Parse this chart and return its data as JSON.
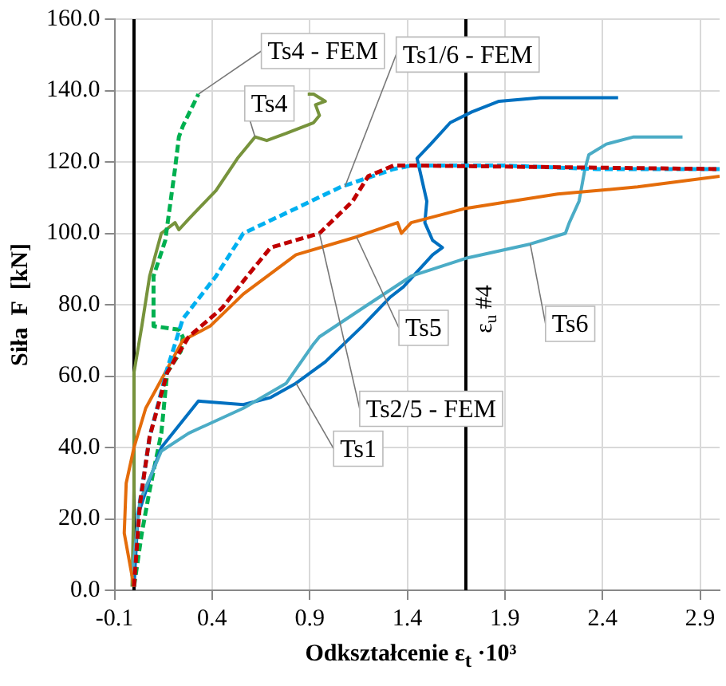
{
  "chart_data": {
    "type": "line",
    "xlabel": "Odkształcenie ε$_{t}$ ·10³",
    "ylabel": "Siła  F  [kN]",
    "xlim": [
      -0.1,
      3.0
    ],
    "xticks": [
      -0.1,
      0.4,
      0.9,
      1.4,
      1.9,
      2.4,
      2.9
    ],
    "ylim": [
      0,
      160
    ],
    "yticks": [
      {
        "value": 0,
        "label": "0.0"
      },
      {
        "value": 20,
        "label": "20.0"
      },
      {
        "value": 40,
        "label": "40.0"
      },
      {
        "value": 60,
        "label": "60.0"
      },
      {
        "value": 80,
        "label": "80.0"
      },
      {
        "value": 100,
        "label": "100.0"
      },
      {
        "value": 120,
        "label": "120.0"
      },
      {
        "value": 140,
        "label": "140.0"
      },
      {
        "value": 160,
        "label": "160.0"
      }
    ],
    "grid": true,
    "legend": false,
    "marker": "none",
    "series": [
      {
        "color": "#77933c",
        "line_style": "solid",
        "x": [
          -0.01,
          0.0,
          0.0,
          0.04,
          0.08,
          0.14,
          0.21,
          0.23,
          0.28,
          0.42,
          0.53,
          0.62,
          0.68,
          0.78,
          0.92,
          0.95,
          0.93,
          0.98,
          0.92,
          0.89
        ],
        "values": [
          1,
          28,
          61,
          74,
          88,
          100,
          103,
          101,
          104,
          112,
          121,
          127,
          126,
          128,
          131,
          133,
          136,
          137,
          139,
          139
        ]
      },
      {
        "color": "#00b050",
        "line_style": "dashed",
        "x": [
          0.0,
          0.04,
          0.08,
          0.14,
          0.17,
          0.24,
          0.25,
          0.23,
          0.1,
          0.1,
          0.16,
          0.18,
          0.21,
          0.23,
          0.25,
          0.33
        ],
        "values": [
          1,
          16,
          28,
          44,
          61,
          67,
          71,
          73,
          74,
          88,
          98,
          106,
          118,
          127,
          130,
          139
        ]
      },
      {
        "color": "#0070c0",
        "line_style": "solid",
        "x": [
          0.0,
          0.02,
          0.08,
          0.14,
          0.33,
          0.56,
          0.7,
          0.83,
          0.98,
          1.17,
          1.31,
          1.38,
          1.53,
          1.58,
          1.53,
          1.49,
          1.5,
          1.45,
          1.52,
          1.62,
          1.73,
          1.87,
          2.08,
          2.48
        ],
        "values": [
          1,
          21,
          31,
          40,
          53,
          52,
          54,
          58,
          64,
          74,
          82,
          85,
          94,
          96,
          98,
          103,
          109,
          121,
          125,
          131,
          134,
          137,
          138,
          138
        ]
      },
      {
        "color": "#4bacc6",
        "line_style": "solid",
        "x": [
          -0.01,
          0.03,
          0.14,
          0.28,
          0.56,
          0.78,
          0.92,
          0.95,
          1.17,
          1.42,
          1.7,
          2.03,
          2.21,
          2.23,
          2.28,
          2.31,
          2.33,
          2.42,
          2.56,
          2.81
        ],
        "values": [
          4,
          25,
          39,
          44,
          51,
          58,
          69,
          71,
          79,
          88,
          93,
          97,
          100,
          103,
          109,
          118,
          122,
          125,
          127,
          127
        ]
      },
      {
        "color": "#e46c0a",
        "line_style": "solid",
        "x": [
          0.0,
          -0.05,
          -0.04,
          0.0,
          0.06,
          0.16,
          0.25,
          0.39,
          0.56,
          0.83,
          1.14,
          1.35,
          1.37,
          1.42,
          1.7,
          2.17,
          2.58,
          3.0
        ],
        "values": [
          1,
          16,
          30,
          40,
          51,
          61,
          70,
          74,
          83,
          94,
          99,
          103,
          100,
          103,
          107,
          111,
          113,
          116
        ]
      },
      {
        "color": "#00b0f0",
        "line_style": "dashed",
        "x": [
          0.02,
          0.08,
          0.17,
          0.25,
          0.42,
          0.56,
          0.83,
          1.06,
          1.33,
          1.42,
          1.89,
          2.37,
          3.0
        ],
        "values": [
          21,
          43,
          62,
          76,
          88,
          100,
          107,
          113,
          118,
          119,
          119,
          118,
          118
        ]
      },
      {
        "color": "#c00000",
        "line_style": "dashed",
        "x": [
          0.0,
          0.03,
          0.08,
          0.17,
          0.28,
          0.45,
          0.58,
          0.7,
          0.95,
          1.12,
          1.2,
          1.33,
          1.42,
          3.0
        ],
        "values": [
          1,
          24,
          43,
          61,
          71,
          79,
          88,
          96,
          100,
          109,
          116,
          119,
          119,
          118
        ]
      }
    ],
    "ref_lines": [
      {
        "axis": "x",
        "value": 0,
        "color": "#000000"
      },
      {
        "axis": "x",
        "value": 1.7,
        "label": "ε$_{u}$ #4",
        "color": "#000000"
      }
    ],
    "annotations": [
      {
        "text": "Ts4 - FEM",
        "x": 0.33,
        "y": 139
      },
      {
        "text": "Ts4",
        "x": 0.62,
        "y": 127
      },
      {
        "text": "Ts1/6 - FEM",
        "x": 1.08,
        "y": 113
      },
      {
        "text": "Ts5",
        "x": 1.14,
        "y": 99
      },
      {
        "text": "Ts2/5 - FEM",
        "x": 0.95,
        "y": 100
      },
      {
        "text": "Ts6",
        "x": 2.03,
        "y": 97
      },
      {
        "text": "Ts1",
        "x": 0.83,
        "y": 58
      }
    ]
  }
}
